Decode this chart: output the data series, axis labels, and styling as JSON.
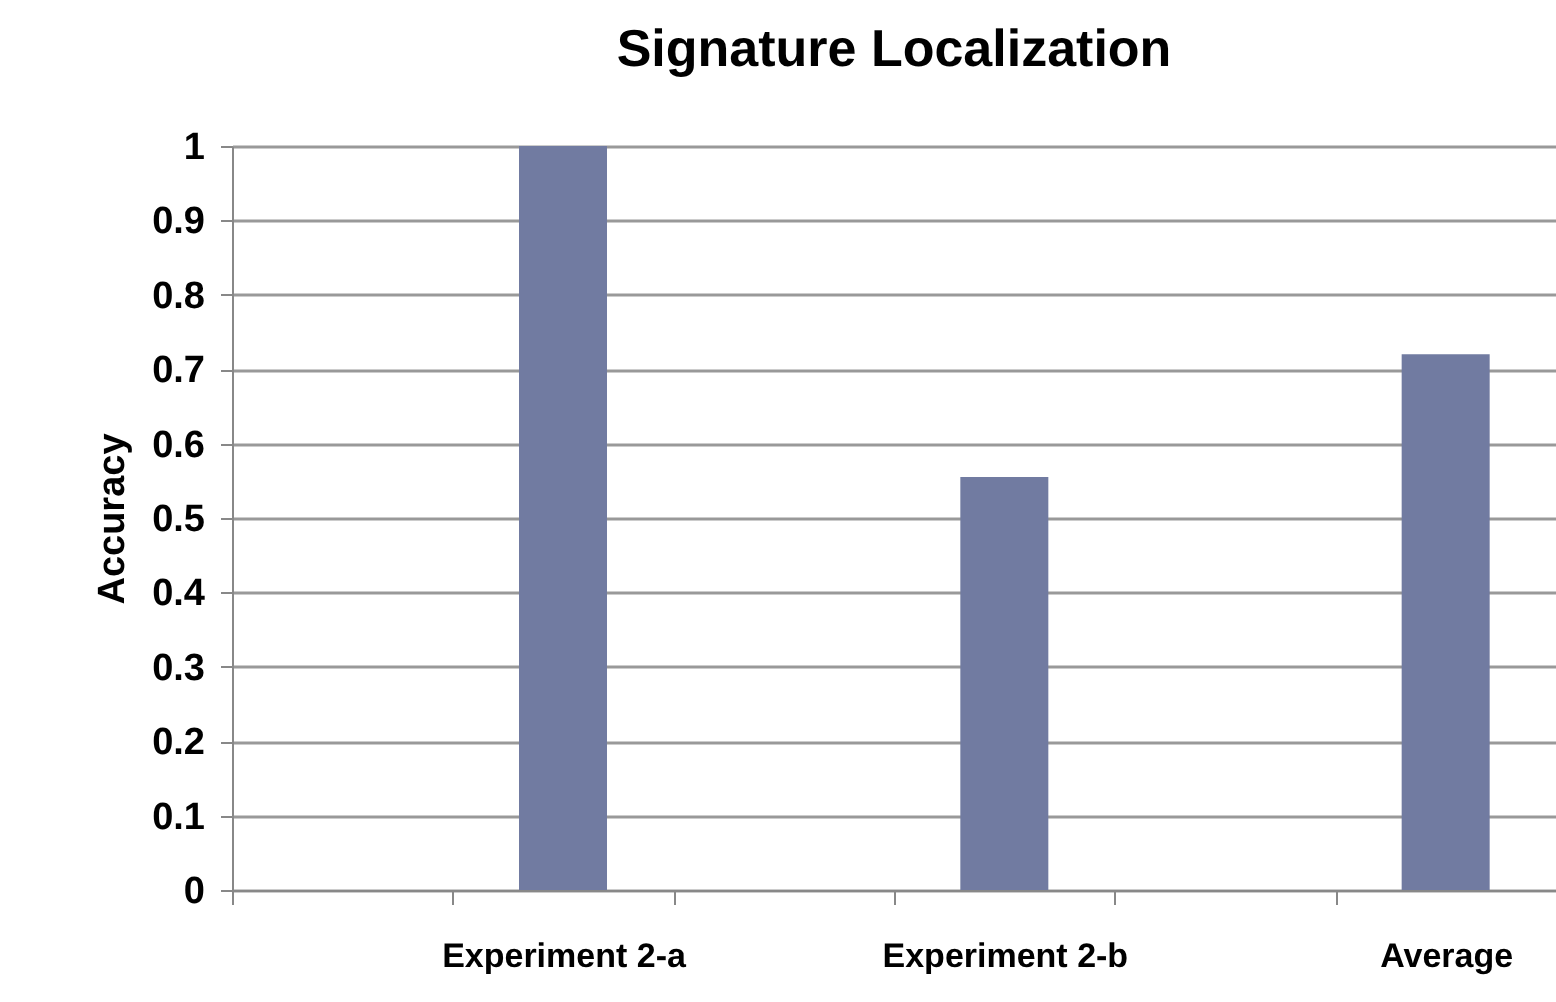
{
  "chart_data": {
    "type": "bar",
    "title": "Signature Localization",
    "ylabel": "Accuracy",
    "categories": [
      null,
      "Experiment 2-a",
      null,
      "Experiment 2-b",
      null,
      "Average"
    ],
    "values": [
      null,
      1,
      null,
      0.555,
      null,
      0.72
    ],
    "color": "#717ba1",
    "ylim": [
      0,
      1
    ],
    "yticks": [
      0,
      0.1,
      0.2,
      0.3,
      0.4,
      0.5,
      0.6,
      0.7,
      0.8,
      0.9,
      1
    ],
    "grid": "y"
  }
}
